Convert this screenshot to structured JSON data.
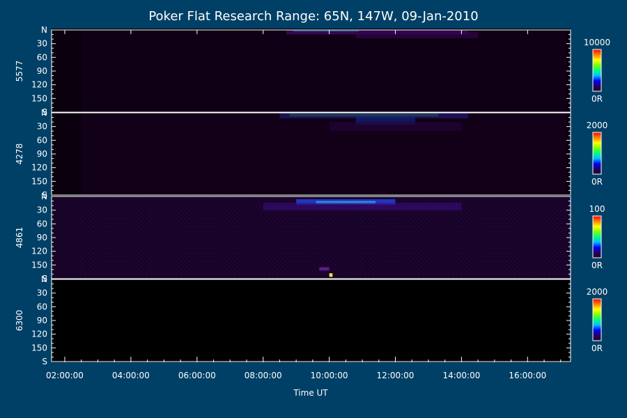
{
  "page": {
    "title": "Poker Flat Research Range: 65N, 147W, 09-Jan-2010",
    "xlabel": "Time UT",
    "background": "#004066",
    "plot_background": "#000000",
    "axis_color": "#ffffff",
    "colorbar_icon": "rainbow-colorbar-icon"
  },
  "chart_data": {
    "type": "heatmap",
    "title": "Poker Flat Research Range: 65N, 147W, 09-Jan-2010",
    "xlabel": "Time UT",
    "x_tick_labels": [
      "02:00:00",
      "04:00:00",
      "06:00:00",
      "08:00:00",
      "10:00:00",
      "12:00:00",
      "14:00:00",
      "16:00:00"
    ],
    "x_tick_hours": [
      2,
      4,
      6,
      8,
      10,
      12,
      14,
      16
    ],
    "x_range_hours": [
      1.6,
      17.3
    ],
    "y_axis_labels": [
      "N",
      "30",
      "60",
      "90",
      "120",
      "150",
      "S"
    ],
    "y_axis_values": [
      0,
      30,
      60,
      90,
      120,
      150,
      180
    ],
    "y_range_deg": [
      0,
      180
    ],
    "colorscale": [
      "#280030",
      "#200060",
      "#0000ff",
      "#00c0ff",
      "#00ff80",
      "#80ff00",
      "#ffff00",
      "#ff8000",
      "#ff0000"
    ],
    "panels": [
      {
        "label": "5577",
        "cbar_max": "10000",
        "cbar_min": "0R",
        "base_color": "#0a000e",
        "features": [
          {
            "t0": 8.7,
            "t1": 14.2,
            "a0": 0,
            "a1": 10,
            "color": "#6a10a8",
            "opacity": 0.8
          },
          {
            "t0": 8.9,
            "t1": 10.9,
            "a0": 0,
            "a1": 4,
            "color": "#20a0ff",
            "opacity": 0.7
          },
          {
            "t0": 10.8,
            "t1": 14.5,
            "a0": 4,
            "a1": 18,
            "color": "#4a0a78",
            "opacity": 0.7
          },
          {
            "t0": 2.5,
            "t1": 17.2,
            "a0": 0,
            "a1": 180,
            "color": "#14001c",
            "opacity": 0.5
          }
        ]
      },
      {
        "label": "4278",
        "cbar_max": "2000",
        "cbar_min": "0R",
        "base_color": "#0a000e",
        "features": [
          {
            "t0": 8.5,
            "t1": 14.2,
            "a0": 0,
            "a1": 12,
            "color": "#2a30d0",
            "opacity": 0.8
          },
          {
            "t0": 8.8,
            "t1": 13.3,
            "a0": 2,
            "a1": 8,
            "color": "#20e0a0",
            "opacity": 0.6
          },
          {
            "t0": 10.8,
            "t1": 12.6,
            "a0": 8,
            "a1": 26,
            "color": "#1050ff",
            "opacity": 0.7
          },
          {
            "t0": 10.0,
            "t1": 14.0,
            "a0": 20,
            "a1": 40,
            "color": "#3a0868",
            "opacity": 0.6
          },
          {
            "t0": 2.5,
            "t1": 17.2,
            "a0": 0,
            "a1": 180,
            "color": "#16001e",
            "opacity": 0.6
          }
        ]
      },
      {
        "label": "4861",
        "cbar_max": "100",
        "cbar_min": "0R",
        "base_color": "#0c0012",
        "features": [
          {
            "t0": 1.6,
            "t1": 17.3,
            "a0": 0,
            "a1": 180,
            "color": "#1c0430",
            "opacity": 0.8
          },
          {
            "t0": 9.0,
            "t1": 12.0,
            "a0": 6,
            "a1": 18,
            "color": "#2050ff",
            "opacity": 0.7
          },
          {
            "t0": 9.6,
            "t1": 11.4,
            "a0": 10,
            "a1": 16,
            "color": "#30d0ff",
            "opacity": 0.6
          },
          {
            "t0": 8.0,
            "t1": 14.0,
            "a0": 14,
            "a1": 30,
            "color": "#3a0c80",
            "opacity": 0.6
          },
          {
            "t0": 9.7,
            "t1": 10.0,
            "a0": 155,
            "a1": 162,
            "color": "#7020b0",
            "opacity": 0.8
          },
          {
            "t0": 10.0,
            "t1": 10.1,
            "a0": 168,
            "a1": 176,
            "color": "#ffff40",
            "opacity": 0.9
          }
        ]
      },
      {
        "label": "6300",
        "cbar_max": "2000",
        "cbar_min": "0R",
        "base_color": "#000000",
        "features": []
      }
    ]
  }
}
